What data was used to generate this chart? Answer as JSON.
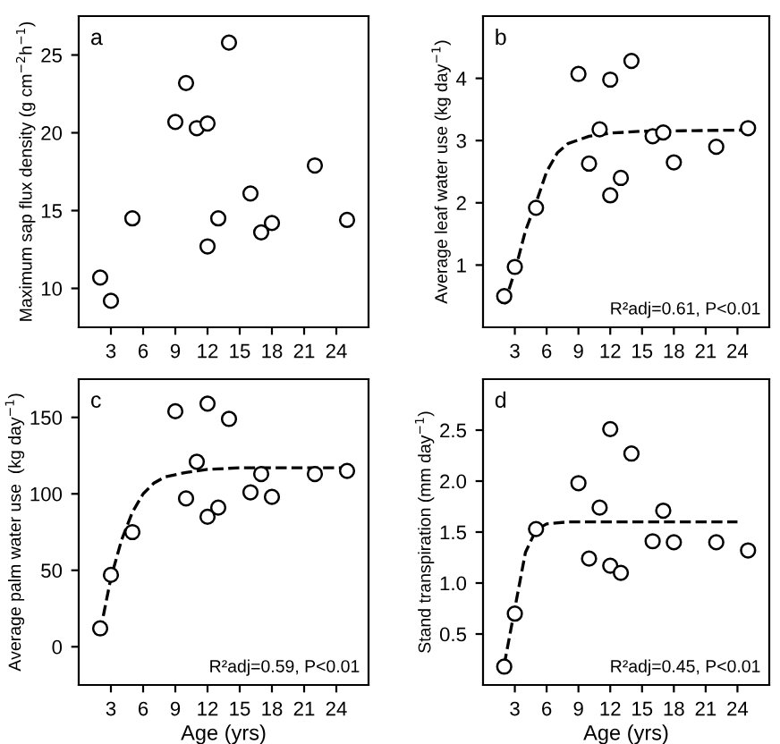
{
  "chart_data": [
    {
      "type": "scatter",
      "ylabel": "Maximum sap flux density (g cm$^{−2}$h$^{−1}$)",
      "annotations": [
        "a"
      ],
      "xlim": [
        0,
        27
      ],
      "xticks": [
        3,
        6,
        9,
        12,
        15,
        18,
        21,
        24
      ],
      "ylim": [
        7.5,
        27.5
      ],
      "yticks": [
        10,
        15,
        20,
        25
      ],
      "grid": false,
      "legend": false,
      "series": [
        {
          "marker": "circle",
          "color": "#000000",
          "x": [
            2,
            3,
            5,
            9,
            10,
            11,
            12,
            12,
            13,
            14,
            16,
            17,
            18,
            22,
            25
          ],
          "values": [
            10.7,
            9.2,
            14.5,
            20.7,
            23.2,
            20.3,
            20.6,
            12.7,
            14.5,
            25.8,
            16.1,
            13.6,
            14.2,
            17.9,
            14.4
          ]
        }
      ]
    },
    {
      "type": "scatter",
      "ylabel": "Average leaf water use (kg day$^{−1}$)",
      "annotations": [
        "b",
        "R²adj=0.61, P<0.01"
      ],
      "xlim": [
        0,
        27
      ],
      "xticks": [
        3,
        6,
        9,
        12,
        15,
        18,
        21,
        24
      ],
      "ylim": [
        0,
        5
      ],
      "yticks": [
        1,
        2,
        3,
        4
      ],
      "grid": false,
      "legend": false,
      "series": [
        {
          "marker": "circle",
          "color": "#000000",
          "x": [
            2,
            3,
            5,
            9,
            10,
            11,
            12,
            12,
            13,
            14,
            16,
            17,
            18,
            22,
            25
          ],
          "values": [
            0.5,
            0.97,
            1.92,
            4.07,
            2.63,
            3.18,
            3.98,
            2.12,
            2.4,
            4.28,
            3.07,
            3.13,
            2.65,
            2.9,
            3.2
          ]
        },
        {
          "type": "line",
          "line_style": "dashed",
          "color": "#000000",
          "x": [
            2,
            3,
            4,
            5,
            6,
            7,
            8,
            10,
            12,
            15,
            20,
            25
          ],
          "values": [
            0.37,
            0.9,
            1.55,
            2.0,
            2.5,
            2.8,
            2.95,
            3.07,
            3.12,
            3.15,
            3.16,
            3.17
          ]
        }
      ]
    },
    {
      "type": "scatter",
      "xlabel": "Age (yrs)",
      "ylabel": "Average palm water use  (kg day$^{−1}$)",
      "annotations": [
        "c",
        "R²adj=0.59, P<0.01"
      ],
      "xlim": [
        0,
        27
      ],
      "xticks": [
        3,
        6,
        9,
        12,
        15,
        18,
        21,
        24
      ],
      "ylim": [
        -25,
        175
      ],
      "yticks": [
        0,
        50,
        100,
        150
      ],
      "grid": false,
      "legend": false,
      "series": [
        {
          "marker": "circle",
          "color": "#000000",
          "x": [
            2,
            3,
            5,
            9,
            10,
            11,
            12,
            12,
            13,
            14,
            16,
            17,
            18,
            22,
            25
          ],
          "values": [
            12,
            47,
            75,
            154,
            97,
            121,
            159,
            85,
            91,
            149,
            101,
            113,
            98,
            113,
            115
          ]
        },
        {
          "type": "line",
          "line_style": "dashed",
          "color": "#000000",
          "x": [
            2,
            3,
            4,
            5,
            6,
            7,
            8,
            10,
            12,
            15,
            20,
            25
          ],
          "values": [
            10,
            45,
            70,
            88,
            100,
            107,
            111,
            114,
            116,
            117,
            117,
            117
          ]
        }
      ]
    },
    {
      "type": "scatter",
      "xlabel": "Age (yrs)",
      "ylabel": "Stand transpiration (mm day$^{−1}$)",
      "annotations": [
        "d",
        "R²adj=0.45, P<0.01"
      ],
      "xlim": [
        0,
        27
      ],
      "xticks": [
        3,
        6,
        9,
        12,
        15,
        18,
        21,
        24
      ],
      "ylim": [
        0,
        3
      ],
      "yticks": [
        {
          "value": 0.5,
          "label": "0.5"
        },
        {
          "value": 1,
          "label": "1.0"
        },
        {
          "value": 1.5,
          "label": "1.5"
        },
        {
          "value": 2,
          "label": "2.0"
        },
        {
          "value": 2.5,
          "label": "2.5"
        }
      ],
      "grid": false,
      "legend": false,
      "series": [
        {
          "marker": "circle",
          "color": "#000000",
          "x": [
            2,
            3,
            5,
            9,
            10,
            11,
            12,
            12,
            13,
            14,
            16,
            17,
            18,
            22,
            25
          ],
          "values": [
            0.18,
            0.7,
            1.53,
            1.98,
            1.24,
            1.74,
            2.51,
            1.17,
            1.1,
            2.27,
            1.41,
            1.71,
            1.4,
            1.4,
            1.32
          ]
        },
        {
          "type": "line",
          "line_style": "dashed",
          "color": "#000000",
          "x": [
            2,
            3,
            4,
            5,
            6,
            8,
            12,
            24
          ],
          "values": [
            0.2,
            0.75,
            1.3,
            1.52,
            1.58,
            1.6,
            1.6,
            1.6
          ]
        }
      ]
    }
  ]
}
